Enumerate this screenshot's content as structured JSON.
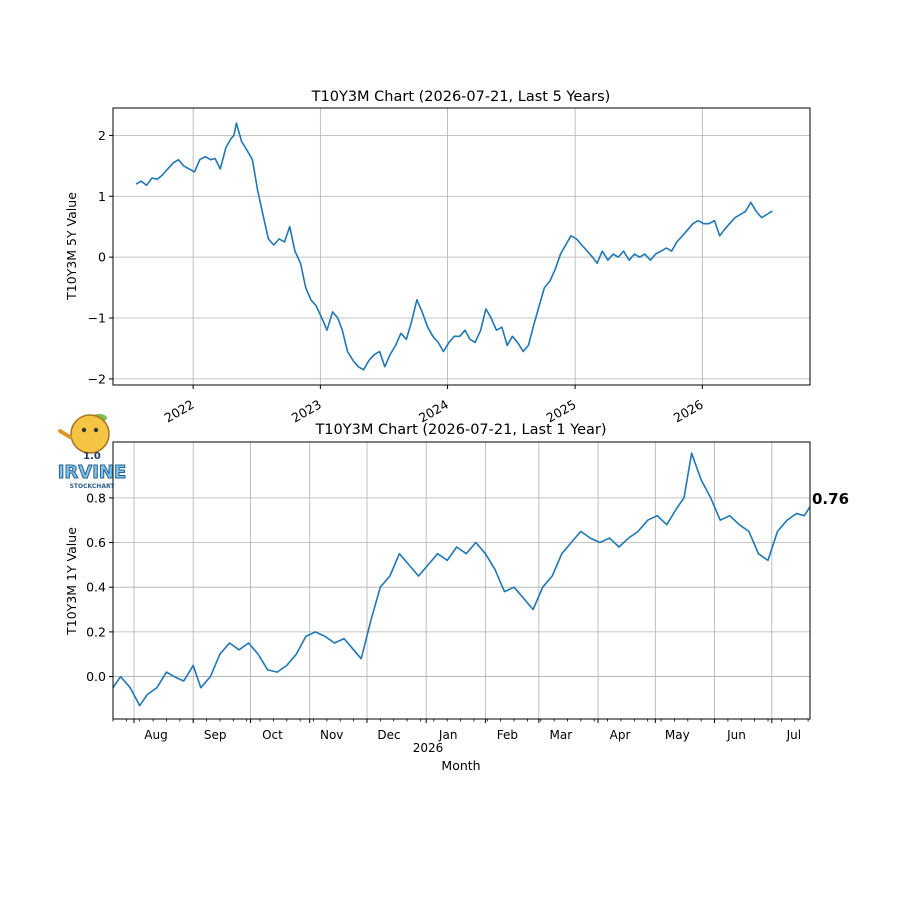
{
  "chart_data": [
    {
      "type": "line",
      "title": "T10Y3M Chart (2026-07-21, Last 5 Years)",
      "xlabel": "",
      "ylabel": "T10Y3M 5Y Value",
      "ylim": [
        -2.1,
        2.45
      ],
      "xlim": [
        "2021-05-16",
        "2026-11-06"
      ],
      "yticks": [
        -2,
        -1,
        0,
        1,
        2
      ],
      "ytick_labels": [
        "−2",
        "−1",
        "0",
        "1",
        "2"
      ],
      "xticks": [
        "2022-01-01",
        "2023-01-01",
        "2024-01-01",
        "2025-01-01",
        "2026-01-01"
      ],
      "xtick_labels": [
        "2022",
        "2023",
        "2024",
        "2025",
        "2026"
      ],
      "grid": true,
      "line_color": "#1f77b4",
      "series": [
        {
          "x": [
            "2021-07-21",
            "2021-08-05",
            "2021-08-20",
            "2021-09-05",
            "2021-09-20",
            "2021-10-05",
            "2021-10-20",
            "2021-11-05",
            "2021-11-20",
            "2021-12-05",
            "2021-12-20",
            "2022-01-05",
            "2022-01-20",
            "2022-02-05",
            "2022-02-20",
            "2022-03-05",
            "2022-03-20",
            "2022-04-05",
            "2022-04-20",
            "2022-04-28",
            "2022-05-05",
            "2022-05-20",
            "2022-06-05",
            "2022-06-20",
            "2022-07-05",
            "2022-07-20",
            "2022-08-05",
            "2022-08-20",
            "2022-09-05",
            "2022-09-20",
            "2022-10-05",
            "2022-10-20",
            "2022-11-05",
            "2022-11-20",
            "2022-12-05",
            "2022-12-20",
            "2023-01-05",
            "2023-01-20",
            "2023-02-05",
            "2023-02-20",
            "2023-03-05",
            "2023-03-20",
            "2023-04-05",
            "2023-04-20",
            "2023-05-05",
            "2023-05-20",
            "2023-06-05",
            "2023-06-20",
            "2023-07-05",
            "2023-07-20",
            "2023-08-05",
            "2023-08-20",
            "2023-09-05",
            "2023-09-20",
            "2023-10-05",
            "2023-10-20",
            "2023-11-05",
            "2023-11-20",
            "2023-12-05",
            "2023-12-20",
            "2024-01-05",
            "2024-01-20",
            "2024-02-05",
            "2024-02-20",
            "2024-03-05",
            "2024-03-20",
            "2024-04-05",
            "2024-04-20",
            "2024-05-05",
            "2024-05-20",
            "2024-06-05",
            "2024-06-20",
            "2024-07-05",
            "2024-07-20",
            "2024-08-05",
            "2024-08-20",
            "2024-09-05",
            "2024-09-20",
            "2024-10-05",
            "2024-10-20",
            "2024-11-05",
            "2024-11-20",
            "2024-12-05",
            "2024-12-20",
            "2025-01-05",
            "2025-01-20",
            "2025-02-05",
            "2025-02-20",
            "2025-03-05",
            "2025-03-20",
            "2025-04-05",
            "2025-04-20",
            "2025-05-05",
            "2025-05-20",
            "2025-06-05",
            "2025-06-20",
            "2025-07-05",
            "2025-07-20",
            "2025-08-05",
            "2025-08-20",
            "2025-09-05",
            "2025-09-20",
            "2025-10-05",
            "2025-10-20",
            "2025-11-05",
            "2025-11-20",
            "2025-12-05",
            "2025-12-20",
            "2026-01-05",
            "2026-01-20",
            "2026-02-05",
            "2026-02-20",
            "2026-03-05",
            "2026-03-20",
            "2026-04-05",
            "2026-04-20",
            "2026-05-05",
            "2026-05-20",
            "2026-06-05",
            "2026-06-20",
            "2026-07-05",
            "2026-07-21"
          ],
          "values": [
            1.2,
            1.25,
            1.18,
            1.3,
            1.28,
            1.35,
            1.45,
            1.55,
            1.6,
            1.5,
            1.45,
            1.4,
            1.6,
            1.65,
            1.6,
            1.62,
            1.45,
            1.8,
            1.95,
            2.0,
            2.2,
            1.9,
            1.75,
            1.6,
            1.1,
            0.7,
            0.3,
            0.2,
            0.3,
            0.25,
            0.5,
            0.1,
            -0.1,
            -0.5,
            -0.7,
            -0.8,
            -1.0,
            -1.2,
            -0.9,
            -1.0,
            -1.2,
            -1.55,
            -1.7,
            -1.8,
            -1.85,
            -1.7,
            -1.6,
            -1.55,
            -1.8,
            -1.6,
            -1.45,
            -1.25,
            -1.35,
            -1.05,
            -0.7,
            -0.9,
            -1.15,
            -1.3,
            -1.4,
            -1.55,
            -1.4,
            -1.3,
            -1.3,
            -1.2,
            -1.35,
            -1.4,
            -1.2,
            -0.85,
            -1.0,
            -1.2,
            -1.15,
            -1.45,
            -1.3,
            -1.4,
            -1.55,
            -1.45,
            -1.1,
            -0.8,
            -0.5,
            -0.4,
            -0.2,
            0.05,
            0.2,
            0.35,
            0.3,
            0.2,
            0.1,
            0.0,
            -0.1,
            0.1,
            -0.05,
            0.05,
            0.0,
            0.1,
            -0.05,
            0.05,
            0.0,
            0.05,
            -0.05,
            0.05,
            0.1,
            0.15,
            0.1,
            0.25,
            0.35,
            0.45,
            0.55,
            0.6,
            0.55,
            0.55,
            0.6,
            0.35,
            0.45,
            0.55,
            0.65,
            0.7,
            0.75,
            0.9,
            0.75,
            0.65,
            0.7,
            0.76
          ]
        }
      ]
    },
    {
      "type": "line",
      "title": "T10Y3M Chart (2026-07-21, Last 1 Year)",
      "xlabel": "Month",
      "ylabel": "T10Y3M 1Y Value",
      "ylim": [
        -0.19,
        1.05
      ],
      "xlim": [
        "2025-07-21",
        "2026-07-21"
      ],
      "yticks": [
        0.0,
        0.2,
        0.4,
        0.6,
        0.8
      ],
      "ytick_labels": [
        "0.0",
        "0.2",
        "0.4",
        "0.6",
        "0.8"
      ],
      "xticks": [
        "2025-08-01",
        "2025-09-01",
        "2025-10-01",
        "2025-11-01",
        "2025-12-01",
        "2026-01-01",
        "2026-02-01",
        "2026-03-01",
        "2026-04-01",
        "2026-05-01",
        "2026-06-01",
        "2026-07-01"
      ],
      "xtick_labels": [
        "Aug",
        "Sep",
        "Oct",
        "Nov",
        "Dec",
        "Jan",
        "Feb",
        "Mar",
        "Apr",
        "May",
        "Jun",
        "Jul"
      ],
      "xtick_year_label": "2026",
      "grid": true,
      "line_color": "#1f77b4",
      "last_value_label": "0.76",
      "series": [
        {
          "x": [
            "2025-07-21",
            "2025-07-25",
            "2025-07-30",
            "2025-08-04",
            "2025-08-08",
            "2025-08-13",
            "2025-08-18",
            "2025-08-22",
            "2025-08-27",
            "2025-09-01",
            "2025-09-05",
            "2025-09-10",
            "2025-09-15",
            "2025-09-20",
            "2025-09-25",
            "2025-09-30",
            "2025-10-05",
            "2025-10-10",
            "2025-10-15",
            "2025-10-20",
            "2025-10-25",
            "2025-10-30",
            "2025-11-04",
            "2025-11-09",
            "2025-11-14",
            "2025-11-19",
            "2025-11-24",
            "2025-11-28",
            "2025-12-03",
            "2025-12-08",
            "2025-12-13",
            "2025-12-18",
            "2025-12-23",
            "2025-12-28",
            "2026-01-02",
            "2026-01-07",
            "2026-01-12",
            "2026-01-17",
            "2026-01-22",
            "2026-01-27",
            "2026-02-01",
            "2026-02-06",
            "2026-02-11",
            "2026-02-16",
            "2026-02-21",
            "2026-02-26",
            "2026-03-03",
            "2026-03-08",
            "2026-03-13",
            "2026-03-18",
            "2026-03-23",
            "2026-03-28",
            "2026-04-02",
            "2026-04-07",
            "2026-04-12",
            "2026-04-17",
            "2026-04-22",
            "2026-04-27",
            "2026-05-02",
            "2026-05-07",
            "2026-05-12",
            "2026-05-16",
            "2026-05-20",
            "2026-05-25",
            "2026-05-30",
            "2026-06-04",
            "2026-06-09",
            "2026-06-14",
            "2026-06-19",
            "2026-06-24",
            "2026-06-29",
            "2026-07-04",
            "2026-07-09",
            "2026-07-14",
            "2026-07-18",
            "2026-07-21"
          ],
          "values": [
            -0.05,
            0.0,
            -0.05,
            -0.13,
            -0.08,
            -0.05,
            0.02,
            0.0,
            -0.02,
            0.05,
            -0.05,
            0.0,
            0.1,
            0.15,
            0.12,
            0.15,
            0.1,
            0.03,
            0.02,
            0.05,
            0.1,
            0.18,
            0.2,
            0.18,
            0.15,
            0.17,
            0.12,
            0.08,
            0.25,
            0.4,
            0.45,
            0.55,
            0.5,
            0.45,
            0.5,
            0.55,
            0.52,
            0.58,
            0.55,
            0.6,
            0.55,
            0.48,
            0.38,
            0.4,
            0.35,
            0.3,
            0.4,
            0.45,
            0.55,
            0.6,
            0.65,
            0.62,
            0.6,
            0.62,
            0.58,
            0.62,
            0.65,
            0.7,
            0.72,
            0.68,
            0.75,
            0.8,
            1.0,
            0.88,
            0.8,
            0.7,
            0.72,
            0.68,
            0.65,
            0.55,
            0.52,
            0.65,
            0.7,
            0.73,
            0.72,
            0.76
          ]
        }
      ]
    }
  ],
  "logo": {
    "name": "irvine-stockchart-logo",
    "text_main": "IRVINE",
    "text_sub": "STOCKCHART",
    "version": "1.0"
  }
}
